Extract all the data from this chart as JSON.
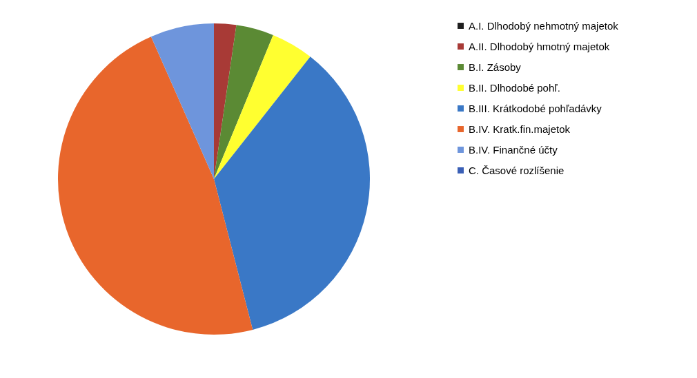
{
  "chart_data": {
    "type": "pie",
    "categories": [
      "A.I.   Dlhodobý nehmotný majetok",
      "A.II.   Dlhodobý hmotný majetok",
      "B.I.   Zásoby",
      "B.II.   Dlhodobé pohľ.",
      "B.III.   Krátkodobé pohľadávky",
      "B.IV.   Kratk.fin.majetok",
      "B.IV.   Finančné účty",
      "C.   Časové rozlíšenie"
    ],
    "values": [
      0,
      2.3,
      3.9,
      4.4,
      35.4,
      47.4,
      6.6,
      0
    ],
    "colors": [
      "#1e1e1e",
      "#a83a36",
      "#5b8a34",
      "#ffff30",
      "#3a78c6",
      "#e8662c",
      "#6e95dc",
      "#3a5fb6"
    ],
    "legend": "right"
  }
}
